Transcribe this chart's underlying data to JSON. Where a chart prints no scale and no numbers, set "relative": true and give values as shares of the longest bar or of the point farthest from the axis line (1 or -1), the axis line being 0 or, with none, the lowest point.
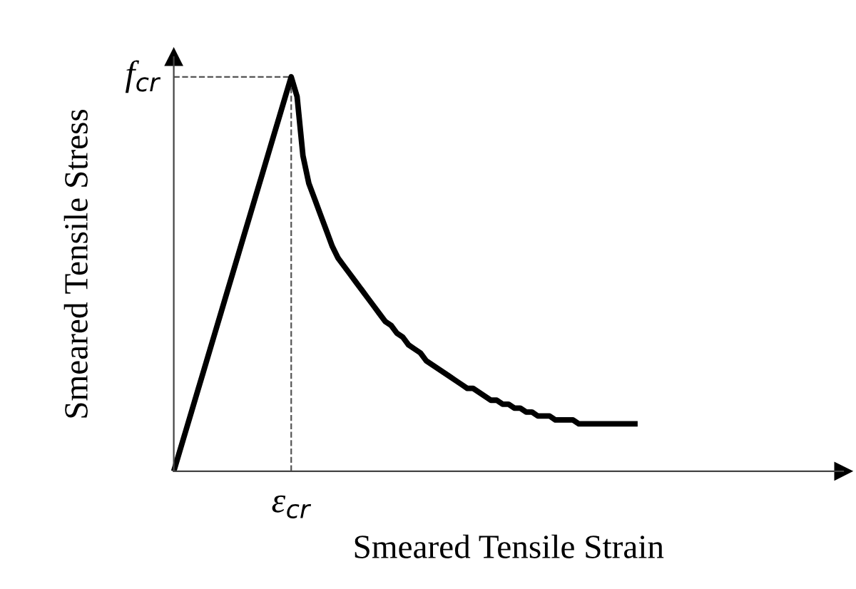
{
  "chart_data": {
    "type": "line",
    "relative": true,
    "xlabel": "Smeared Tensile Strain",
    "ylabel": "Smeared Tensile Stress",
    "categories": [
      null,
      null,
      null,
      null,
      null,
      null,
      null,
      null,
      null,
      null,
      null,
      null,
      null,
      null,
      null,
      null,
      null,
      null,
      null,
      null,
      null,
      null,
      null,
      null,
      null,
      null,
      null,
      null,
      null,
      null,
      null,
      null,
      null,
      null,
      null,
      null,
      null,
      null,
      null,
      null,
      null,
      null,
      null,
      null,
      null,
      null,
      null,
      null,
      null,
      null,
      null,
      null,
      null,
      null,
      null,
      null,
      null,
      null,
      null,
      null,
      null,
      null,
      null,
      null,
      null,
      null,
      null,
      null,
      null,
      null,
      null,
      null,
      null,
      null,
      null,
      null,
      null,
      null,
      null,
      null,
      null,
      null,
      null,
      null,
      null,
      null,
      null,
      null,
      null,
      null,
      null,
      null,
      null,
      null,
      null,
      null,
      null,
      null,
      null,
      null,
      null,
      null,
      null,
      null,
      null,
      null,
      null,
      null,
      null,
      null,
      null,
      null,
      null,
      null,
      null
    ],
    "series": [
      {
        "color": "#000000",
        "values": [
          0,
          0.05,
          0.1,
          0.15,
          0.2,
          0.25,
          0.3,
          0.35,
          0.4,
          0.45,
          0.5,
          0.55,
          0.6,
          0.65,
          0.7,
          0.75,
          0.8,
          0.85,
          0.9,
          0.95,
          1,
          0.95,
          0.8,
          0.73,
          0.69,
          0.65,
          0.61,
          0.57,
          0.54,
          0.52,
          0.5,
          0.48,
          0.46,
          0.44,
          0.42,
          0.4,
          0.38,
          0.37,
          0.35,
          0.34,
          0.32,
          0.31,
          0.3,
          0.28,
          0.27,
          0.26,
          0.25,
          0.24,
          0.23,
          0.22,
          0.21,
          0.21,
          0.2,
          0.19,
          0.18,
          0.18,
          0.17,
          0.17,
          0.16,
          0.16,
          0.15,
          0.15,
          0.14,
          0.14,
          0.14,
          0.13,
          0.13,
          0.13,
          0.13,
          0.12,
          0.12,
          0.12,
          0.12,
          0.12,
          0.12,
          0.12,
          0.12,
          0.12,
          0.12,
          0.12,
          null,
          null,
          null,
          null,
          null,
          null,
          null,
          null,
          null,
          null,
          null,
          null,
          null,
          null,
          null,
          null,
          null,
          null,
          null,
          null,
          null,
          null,
          null,
          null,
          null,
          null,
          null,
          null,
          null,
          null,
          null,
          null,
          null,
          null,
          null
        ]
      }
    ],
    "annotations": [
      "f$_{cr}$",
      "ε$_{cr}$"
    ],
    "marker": "none",
    "line_style": "solid"
  }
}
